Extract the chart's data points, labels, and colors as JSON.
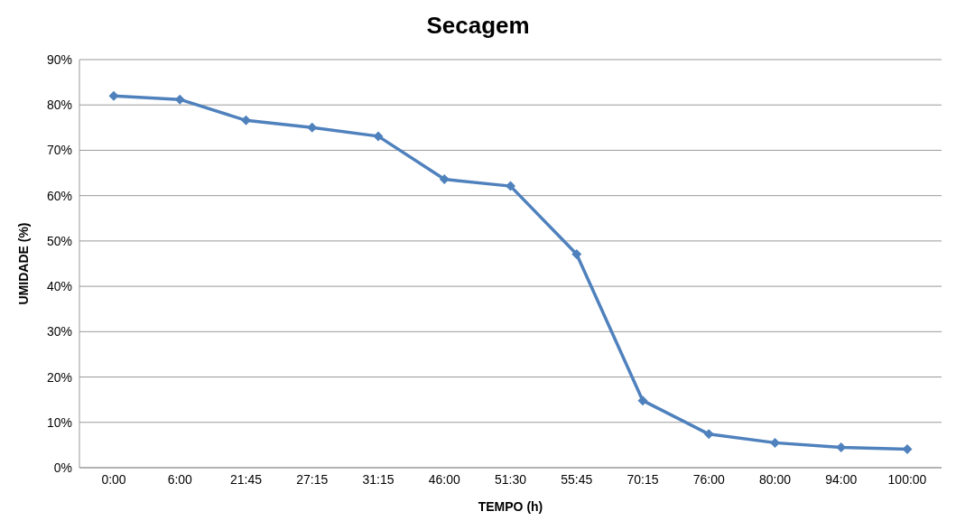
{
  "chart_data": {
    "type": "line",
    "title": "Secagem",
    "xlabel": "TEMPO (h)",
    "ylabel": "UMIDADE (%)",
    "categories": [
      "0:00",
      "6:00",
      "21:45",
      "27:15",
      "31:15",
      "46:00",
      "51:30",
      "55:45",
      "70:15",
      "76:00",
      "80:00",
      "94:00",
      "100:00"
    ],
    "series": [
      {
        "color": "#4f81bd",
        "values": [
          82,
          81.2,
          76.6,
          75,
          73.1,
          63.6,
          62.1,
          47.1,
          14.8,
          7.4,
          5.5,
          4.5,
          4.1
        ]
      }
    ],
    "ylim": [
      0,
      90
    ],
    "yticks": [
      {
        "value": 0,
        "label": "0%"
      },
      {
        "value": 10,
        "label": "10%"
      },
      {
        "value": 20,
        "label": "20%"
      },
      {
        "value": 30,
        "label": "30%"
      },
      {
        "value": 40,
        "label": "40%"
      },
      {
        "value": 50,
        "label": "50%"
      },
      {
        "value": 60,
        "label": "60%"
      },
      {
        "value": 70,
        "label": "70%"
      },
      {
        "value": 80,
        "label": "80%"
      },
      {
        "value": 90,
        "label": "90%"
      }
    ],
    "grid": "y",
    "legend": false,
    "marker": "diamond",
    "line_style": "solid"
  }
}
